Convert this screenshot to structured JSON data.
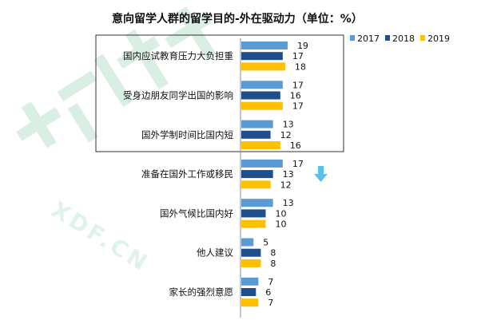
{
  "chart_data": {
    "type": "bar",
    "orientation": "horizontal",
    "title": "意向留学人群的留学目的-外在驱动力（单位：%）",
    "categories": [
      "国内应试教育压力大负担重",
      "受身边朋友同学出国的影响",
      "国外学制时间比国内短",
      "准备在国外工作或移民",
      "国外气候比国内好",
      "他人建议",
      "家长的强烈意愿"
    ],
    "series": [
      {
        "name": "2017",
        "values": [
          19,
          17,
          13,
          17,
          13,
          5,
          7
        ],
        "color": "#5b9bd5"
      },
      {
        "name": "2018",
        "values": [
          17,
          16,
          12,
          13,
          10,
          8,
          6
        ],
        "color": "#1f4e8c"
      },
      {
        "name": "2019",
        "values": [
          18,
          17,
          16,
          12,
          10,
          8,
          7
        ],
        "color": "#ffc000"
      }
    ],
    "legend_position": "top-right",
    "grid": false,
    "highlight_box_categories": [
      0,
      1,
      2
    ]
  },
  "watermark": {
    "logo_text": "新东方",
    "sub_text": "XDF.CN"
  },
  "colors": {
    "box_border": "#333333",
    "arrow": "#5bc0eb",
    "watermark": "#cdeadc"
  }
}
